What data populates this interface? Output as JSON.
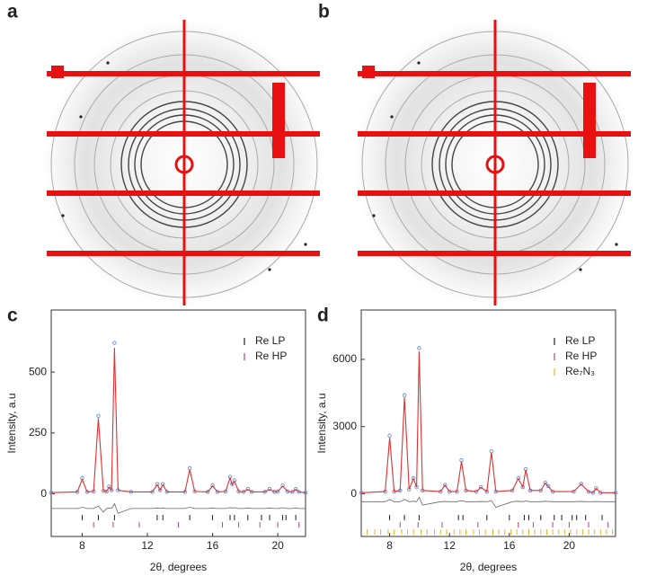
{
  "images": [
    {
      "label": "a"
    },
    {
      "label": "b"
    }
  ],
  "chart_data": [
    {
      "type": "refinement",
      "label": "c",
      "x_label": "2θ, degrees",
      "y_label": "Intensity, a.u",
      "xlim": [
        6.1,
        21.7
      ],
      "xticks": [
        8,
        12,
        16,
        20
      ],
      "ylim": [
        -175,
        755
      ],
      "yticks": [
        0,
        250,
        500
      ],
      "observed_color": "#6a8fd8",
      "calculated_color": "#e03030",
      "difference_color": "#666666",
      "x": [
        6.1,
        7.7,
        8.0,
        8.3,
        8.7,
        8.99,
        9.3,
        9.5,
        9.65,
        9.8,
        9.98,
        10.2,
        11.0,
        12.3,
        12.6,
        12.78,
        12.95,
        13.2,
        14.3,
        14.6,
        14.9,
        15.7,
        16.0,
        16.3,
        16.8,
        17.07,
        17.2,
        17.34,
        17.6,
        17.9,
        18.16,
        18.4,
        19.2,
        19.5,
        19.8,
        20.0,
        20.3,
        20.6,
        20.9,
        21.1,
        21.3,
        21.7
      ],
      "observed": [
        5,
        8,
        65,
        8,
        10,
        320,
        12,
        10,
        30,
        15,
        620,
        15,
        8,
        8,
        40,
        15,
        40,
        8,
        8,
        105,
        10,
        8,
        35,
        8,
        10,
        70,
        40,
        55,
        10,
        8,
        20,
        8,
        8,
        20,
        8,
        10,
        35,
        10,
        8,
        20,
        8,
        5
      ],
      "calculated": [
        5,
        8,
        60,
        8,
        10,
        310,
        12,
        10,
        28,
        15,
        600,
        15,
        8,
        8,
        38,
        15,
        38,
        8,
        8,
        100,
        10,
        8,
        33,
        8,
        10,
        66,
        38,
        52,
        10,
        8,
        18,
        8,
        8,
        18,
        8,
        10,
        32,
        10,
        8,
        18,
        8,
        5
      ],
      "difference": [
        -60,
        -60,
        -55,
        -60,
        -60,
        -50,
        -75,
        -60,
        -58,
        -60,
        -40,
        -80,
        -60,
        -60,
        -58,
        -60,
        -58,
        -60,
        -60,
        -55,
        -60,
        -60,
        -58,
        -60,
        -60,
        -56,
        -58,
        -57,
        -60,
        -60,
        -58,
        -60,
        -60,
        -58,
        -60,
        -60,
        -57,
        -60,
        -60,
        -58,
        -60,
        -60
      ],
      "phases": [
        {
          "name": "Re LP",
          "color": "#222222",
          "positions": [
            8.0,
            8.99,
            9.98,
            12.6,
            12.95,
            14.6,
            16.0,
            17.07,
            17.34,
            18.16,
            19.0,
            19.5,
            20.3,
            20.5,
            21.1
          ]
        },
        {
          "name": "Re HP",
          "color": "#b0408a",
          "positions": [
            8.7,
            9.9,
            11.5,
            13.9,
            16.6,
            17.6,
            18.9,
            20.0,
            21.3
          ]
        }
      ]
    },
    {
      "type": "refinement",
      "label": "d",
      "x_label": "2θ, degrees",
      "y_label": "Intensity, a.u",
      "xlim": [
        6.1,
        23.1
      ],
      "xticks": [
        8,
        12,
        16,
        20
      ],
      "ylim": [
        -1900,
        8200
      ],
      "yticks": [
        0,
        3000,
        6000
      ],
      "observed_color": "#6a8fd8",
      "calculated_color": "#e03030",
      "difference_color": "#666666",
      "x": [
        6.1,
        7.7,
        8.0,
        8.3,
        8.7,
        8.99,
        9.3,
        9.59,
        9.8,
        9.97,
        10.2,
        11.4,
        11.7,
        12.0,
        12.5,
        12.8,
        13.1,
        13.8,
        14.1,
        14.5,
        14.8,
        15.1,
        16.2,
        16.6,
        16.9,
        17.1,
        17.4,
        18.1,
        18.4,
        18.6,
        18.9,
        20.3,
        20.8,
        21.3,
        21.6,
        21.8,
        22.1,
        23.1
      ],
      "observed": [
        50,
        100,
        2600,
        100,
        150,
        4400,
        200,
        700,
        300,
        6500,
        150,
        100,
        400,
        100,
        100,
        1500,
        150,
        100,
        300,
        100,
        1900,
        100,
        150,
        700,
        300,
        1100,
        150,
        150,
        500,
        350,
        100,
        100,
        450,
        100,
        50,
        250,
        50,
        50
      ],
      "calculated": [
        50,
        100,
        2500,
        100,
        150,
        4300,
        200,
        680,
        300,
        6350,
        150,
        100,
        390,
        100,
        100,
        1450,
        150,
        100,
        290,
        100,
        1850,
        100,
        150,
        680,
        300,
        1070,
        150,
        150,
        480,
        340,
        100,
        100,
        440,
        100,
        50,
        240,
        50,
        50
      ],
      "difference": [
        -350,
        -350,
        -250,
        -350,
        -350,
        -250,
        -350,
        -330,
        -350,
        -150,
        -500,
        -350,
        -340,
        -350,
        -350,
        -300,
        -350,
        -350,
        -340,
        -350,
        -300,
        -600,
        -350,
        -330,
        -350,
        -320,
        -350,
        -350,
        -330,
        -340,
        -350,
        -350,
        -340,
        -350,
        -350,
        -340,
        -350,
        -350
      ],
      "phases": [
        {
          "name": "Re LP",
          "color": "#222222",
          "positions": [
            8.0,
            8.99,
            9.97,
            12.6,
            12.9,
            14.5,
            16.0,
            17.0,
            17.3,
            18.1,
            19.0,
            19.5,
            20.2,
            20.5,
            21.1,
            22.2
          ]
        },
        {
          "name": "Re HP",
          "color": "#b0408a",
          "positions": [
            8.7,
            9.9,
            11.5,
            13.9,
            16.6,
            17.6,
            18.9,
            20.0,
            21.3,
            22.6
          ]
        },
        {
          "name": "Re₇N₃",
          "color": "#f0b020",
          "positions": [
            6.5,
            7.0,
            7.4,
            7.9,
            8.3,
            8.8,
            9.2,
            9.6,
            10.1,
            10.5,
            11.0,
            11.4,
            11.8,
            12.3,
            12.7,
            13.1,
            13.6,
            14.0,
            14.4,
            14.9,
            15.3,
            15.7,
            16.1,
            16.5,
            16.9,
            17.3,
            17.7,
            18.1,
            18.5,
            18.9,
            19.3,
            19.7,
            20.1,
            20.5,
            20.9,
            21.3,
            21.7,
            22.1,
            22.5,
            22.9
          ]
        }
      ]
    }
  ]
}
